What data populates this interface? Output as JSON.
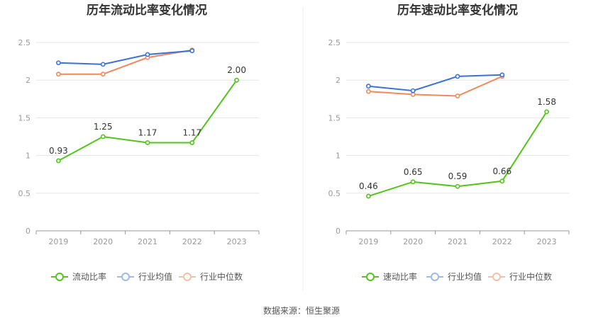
{
  "source_text": "数据来源：恒生聚源",
  "colors": {
    "primary": "#52c41a",
    "average": "#3a72d8",
    "median": "#f08a5d",
    "legend_average": "#9db8ea",
    "legend_median": "#f6bfa5"
  },
  "chart_data": [
    {
      "type": "line",
      "title": "历年流动比率变化情况",
      "categories": [
        "2019",
        "2020",
        "2021",
        "2022",
        "2023"
      ],
      "ylim": [
        0,
        2.5
      ],
      "yticks": [
        "0",
        "0.5",
        "1",
        "1.5",
        "2",
        "2.5"
      ],
      "grid": true,
      "legend_position": "bottom",
      "series": [
        {
          "name": "流动比率",
          "values": [
            0.93,
            1.25,
            1.17,
            1.17,
            2.0
          ],
          "labels": [
            "0.93",
            "1.25",
            "1.17",
            "1.17",
            "2.00"
          ]
        },
        {
          "name": "行业均值",
          "values": [
            2.23,
            2.21,
            2.34,
            2.39,
            null
          ]
        },
        {
          "name": "行业中位数",
          "values": [
            2.08,
            2.08,
            2.3,
            2.4,
            null
          ]
        }
      ]
    },
    {
      "type": "line",
      "title": "历年速动比率变化情况",
      "categories": [
        "2019",
        "2020",
        "2021",
        "2022",
        "2023"
      ],
      "ylim": [
        0,
        2.5
      ],
      "yticks": [
        "0",
        "0.5",
        "1",
        "1.5",
        "2",
        "2.5"
      ],
      "grid": true,
      "legend_position": "bottom",
      "series": [
        {
          "name": "速动比率",
          "values": [
            0.46,
            0.65,
            0.59,
            0.66,
            1.58
          ],
          "labels": [
            "0.46",
            "0.65",
            "0.59",
            "0.66",
            "1.58"
          ]
        },
        {
          "name": "行业均值",
          "values": [
            1.92,
            1.86,
            2.05,
            2.07,
            null
          ]
        },
        {
          "name": "行业中位数",
          "values": [
            1.85,
            1.81,
            1.79,
            2.05,
            null
          ]
        }
      ]
    }
  ]
}
